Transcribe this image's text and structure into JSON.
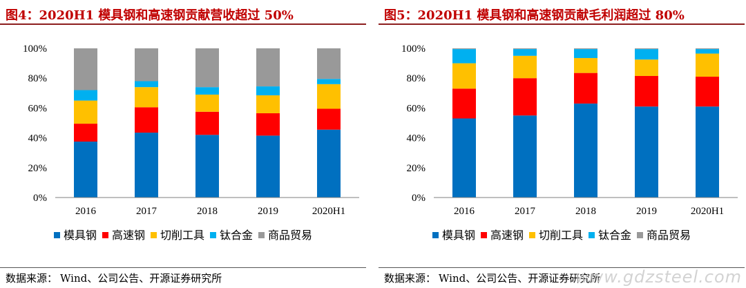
{
  "panels": [
    {
      "title": "图4：2020H1 模具钢和高速钢贡献营收超过 50%",
      "source_label": "数据来源：",
      "source_text": "Wind、公司公告、开源证券研究所"
    },
    {
      "title": "图5：2020H1 模具钢和高速钢贡献毛利润超过 80%",
      "source_label": "数据来源：",
      "source_text": "Wind、公司公告、开源证券研究所"
    }
  ],
  "watermark": "www.gdzsteel.com",
  "chart_data": [
    {
      "type": "bar",
      "stacked": true,
      "categories": [
        "2016",
        "2017",
        "2018",
        "2019",
        "2020H1"
      ],
      "ylim": [
        0,
        100
      ],
      "yticks": [
        "0%",
        "20%",
        "40%",
        "60%",
        "80%",
        "100%"
      ],
      "legend_position": "bottom",
      "series": [
        {
          "name": "模具钢",
          "color": "#0070c0",
          "values": [
            37.5,
            43.5,
            42.0,
            41.5,
            45.5
          ]
        },
        {
          "name": "高速钢",
          "color": "#ff0000",
          "values": [
            12.0,
            17.0,
            15.5,
            15.0,
            14.0
          ]
        },
        {
          "name": "切削工具",
          "color": "#ffc000",
          "values": [
            15.5,
            13.5,
            11.5,
            12.0,
            16.5
          ]
        },
        {
          "name": "钛合金",
          "color": "#00b0f0",
          "values": [
            7.0,
            4.0,
            5.0,
            6.0,
            3.5
          ]
        },
        {
          "name": "商品贸易",
          "color": "#999999",
          "values": [
            28.0,
            22.0,
            26.0,
            25.5,
            20.5
          ]
        }
      ]
    },
    {
      "type": "bar",
      "stacked": true,
      "categories": [
        "2016",
        "2017",
        "2018",
        "2019",
        "2020H1"
      ],
      "ylim": [
        0,
        100
      ],
      "yticks": [
        "0%",
        "20%",
        "40%",
        "60%",
        "80%",
        "100%"
      ],
      "legend_position": "bottom",
      "series": [
        {
          "name": "模具钢",
          "color": "#0070c0",
          "values": [
            53.0,
            55.0,
            63.0,
            61.0,
            61.0
          ]
        },
        {
          "name": "高速钢",
          "color": "#ff0000",
          "values": [
            20.0,
            25.0,
            20.5,
            20.5,
            20.0
          ]
        },
        {
          "name": "切削工具",
          "color": "#ffc000",
          "values": [
            17.0,
            15.0,
            10.0,
            11.0,
            15.5
          ]
        },
        {
          "name": "钛合金",
          "color": "#00b0f0",
          "values": [
            9.5,
            4.5,
            6.0,
            7.0,
            3.0
          ]
        },
        {
          "name": "商品贸易",
          "color": "#999999",
          "values": [
            0.5,
            0.5,
            0.5,
            0.5,
            0.5
          ]
        }
      ]
    }
  ]
}
